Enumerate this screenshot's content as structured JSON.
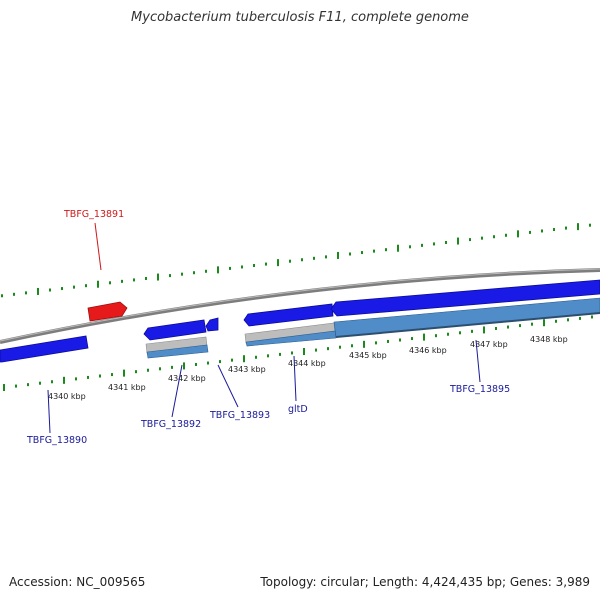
{
  "title": "Mycobacterium tuberculosis F11, complete genome",
  "footer": {
    "accession": "Accession: NC_009565",
    "summary": "Topology: circular; Length: 4,424,435 bp; Genes: 3,989"
  },
  "colors": {
    "backbone": "#8a8a8a",
    "gene_forward": "#1a1ae6",
    "gene_highlight": "#e61a1a",
    "gene_reverse": "#1a1ae6",
    "cds_band": "#4f8cc8",
    "cds_grey": "#bdbdbd",
    "tick": "#1a8a1a",
    "label_default": "#1a1a9a",
    "label_highlight": "#cc1a1a"
  },
  "axis": {
    "unit": "kbp",
    "ticks": [
      {
        "kbp": 4340,
        "label": "4340 kbp"
      },
      {
        "kbp": 4341,
        "label": "4341 kbp"
      },
      {
        "kbp": 4342,
        "label": "4342 kbp"
      },
      {
        "kbp": 4343,
        "label": "4343 kbp"
      },
      {
        "kbp": 4344,
        "label": "4344 kbp"
      },
      {
        "kbp": 4345,
        "label": "4345 kbp"
      },
      {
        "kbp": 4346,
        "label": "4346 kbp"
      },
      {
        "kbp": 4347,
        "label": "4347 kbp"
      },
      {
        "kbp": 4348,
        "label": "4348 kbp"
      }
    ]
  },
  "genes": [
    {
      "id": "TBFG_13890",
      "label": "TBFG_13890",
      "highlight": false
    },
    {
      "id": "TBFG_13891",
      "label": "TBFG_13891",
      "highlight": true
    },
    {
      "id": "TBFG_13892",
      "label": "TBFG_13892",
      "highlight": false
    },
    {
      "id": "TBFG_13893",
      "label": "TBFG_13893",
      "highlight": false
    },
    {
      "id": "gltD",
      "label": "gltD",
      "highlight": false
    },
    {
      "id": "TBFG_13895",
      "label": "TBFG_13895",
      "highlight": false
    }
  ]
}
